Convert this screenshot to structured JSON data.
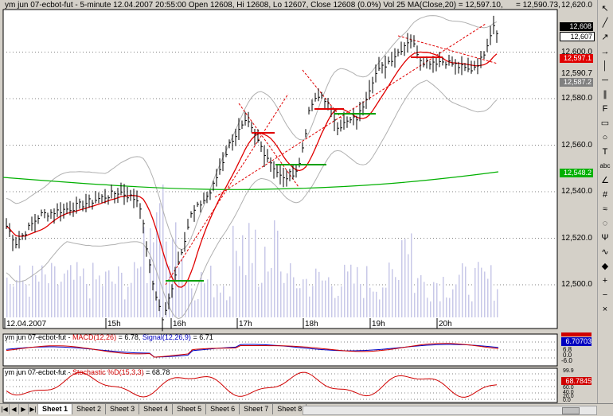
{
  "chart_header": "ym  jun 07-ecbot-fut - 5-minute 12.04.2007 20:55:00 Open 12608, Hi 12608, Lo 12607, Close 12608 (0.0%) Vol 25 MA(Close,20) = 12,597.10,",
  "header_right_value": "= 12,590.73,",
  "price_axis": {
    "ticks": [
      "12,620.0",
      "12,600.0",
      "12,590.7",
      "12,580.0",
      "12,560.0",
      "12,540.0",
      "12,520.0",
      "12,500.0"
    ],
    "labels": {
      "last_price": "12,608",
      "close": "12,607",
      "ma_value": "12,597.1",
      "band_lower": "12,587.2",
      "green_ma": "12,548.2"
    }
  },
  "time_axis": {
    "labels": [
      "12.04.2007",
      "15h",
      "16h",
      "17h",
      "18h",
      "19h",
      "20h"
    ]
  },
  "macd_panel": {
    "header_prefix": "ym  jun 07-ecbot-fut - ",
    "macd_label": "MACD(12,26)",
    "macd_value": "= 6.78,",
    "signal_label": "Signal(12,26,9)",
    "signal_value": "= 6.71",
    "ticks": [
      "6.8",
      "0.0",
      "-6.0"
    ],
    "value_label": "6.70703"
  },
  "stoch_panel": {
    "header_prefix": "ym  jun 07-ecbot-fut - ",
    "label": "Stochastic %D(15,3,3)",
    "value": "= 68.78",
    "ticks": [
      "99.9",
      "80.0",
      "60.0",
      "40.0",
      "20.0",
      "0.0"
    ],
    "value_label": "68.7845"
  },
  "toolbar": {
    "tools": [
      "cursor-tool",
      "line-tool",
      "ray-tool",
      "arrow-tool",
      "vertical-line-tool",
      "horizontal-line-tool",
      "channel-tool",
      "fibonacci-tool",
      "rectangle-tool",
      "ellipse-tool",
      "text-tool",
      "abc-tool",
      "fan-tool",
      "gann-tool",
      "regression-tool",
      "cycle-tool",
      "pitchfork-tool",
      "wave-tool",
      "marker-tool",
      "zoom-in-tool",
      "zoom-out-tool",
      "delete-tool"
    ],
    "text_label": "abc"
  },
  "sheet_tabs": [
    "Sheet 1",
    "Sheet 2",
    "Sheet 3",
    "Sheet 4",
    "Sheet 5",
    "Sheet 6",
    "Sheet 7",
    "Sheet 8"
  ],
  "active_sheet": "Sheet 1",
  "colors": {
    "ma_red": "#e00000",
    "ma_green": "#00b000",
    "bollinger": "#b0b0b0",
    "trend_red": "#e00000",
    "macd_blue": "#0000c0",
    "signal_red": "#d00000"
  }
}
